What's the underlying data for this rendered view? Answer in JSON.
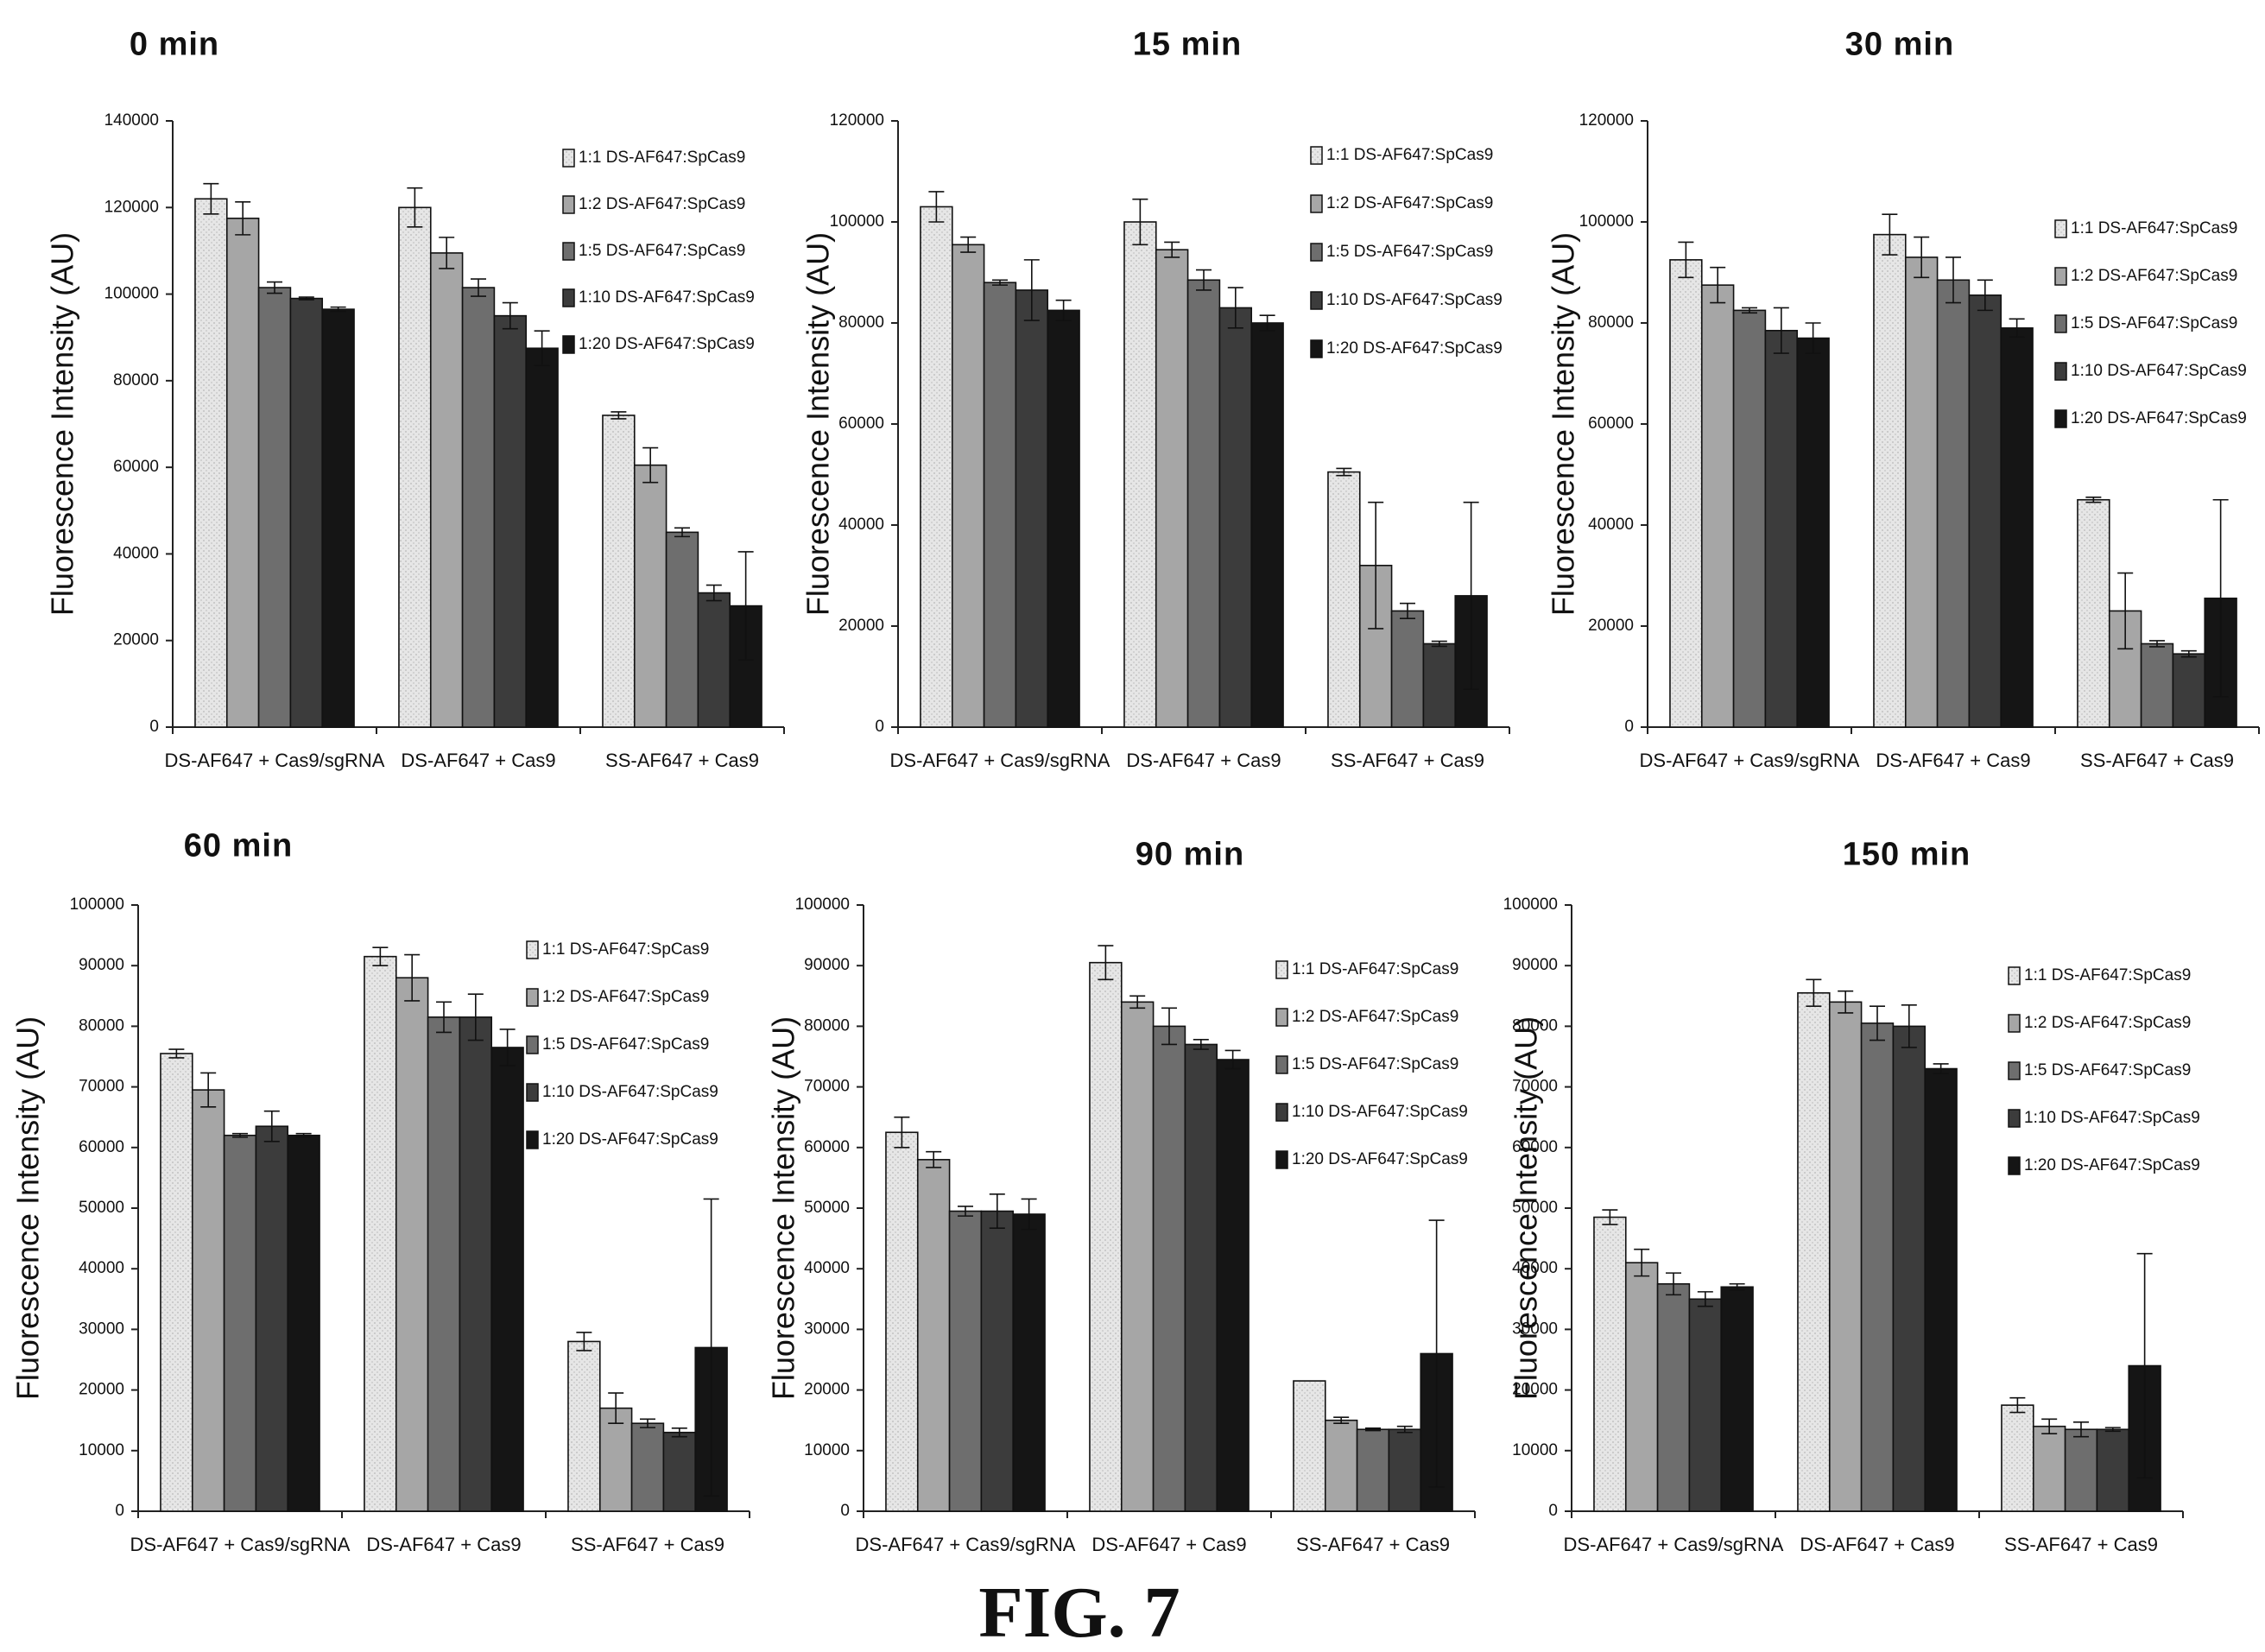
{
  "figure_label": "FIG. 7",
  "colors": {
    "series": [
      "#e2e2e2",
      "#a6a6a6",
      "#6e6e6e",
      "#3c3c3c",
      "#151515"
    ],
    "axis": "#222222",
    "text": "#111111"
  },
  "chart_data": [
    {
      "type": "bar",
      "title": "0 min",
      "ylabel": "Fluorescence Intensity (AU)",
      "ylim": [
        0,
        140000
      ],
      "yticks": [
        0,
        20000,
        40000,
        60000,
        80000,
        100000,
        120000,
        140000
      ],
      "categories": [
        "DS-AF647 + Cas9/sgRNA",
        "DS-AF647 + Cas9",
        "SS-AF647 + Cas9"
      ],
      "series": [
        {
          "name": "1:1 DS-AF647:SpCas9",
          "values": [
            122000,
            120000,
            72000
          ],
          "errors": [
            3500,
            4500,
            800
          ]
        },
        {
          "name": "1:2 DS-AF647:SpCas9",
          "values": [
            117500,
            109500,
            60500
          ],
          "errors": [
            3800,
            3600,
            4000
          ]
        },
        {
          "name": "1:5 DS-AF647:SpCas9",
          "values": [
            101500,
            101500,
            45000
          ],
          "errors": [
            1300,
            2000,
            1000
          ]
        },
        {
          "name": "1:10 DS-AF647:SpCas9",
          "values": [
            99000,
            95000,
            31000
          ],
          "errors": [
            300,
            3000,
            1800
          ]
        },
        {
          "name": "1:20 DS-AF647:SpCas9",
          "values": [
            96500,
            87500,
            28000
          ],
          "errors": [
            500,
            4000,
            12500
          ]
        }
      ]
    },
    {
      "type": "bar",
      "title": "15 min",
      "ylabel": "Fluorescence Intensity (AU)",
      "ylim": [
        0,
        120000
      ],
      "yticks": [
        0,
        20000,
        40000,
        60000,
        80000,
        100000,
        120000
      ],
      "categories": [
        "DS-AF647 + Cas9/sgRNA",
        "DS-AF647 + Cas9",
        "SS-AF647 + Cas9"
      ],
      "series": [
        {
          "name": "1:1 DS-AF647:SpCas9",
          "values": [
            103000,
            100000,
            50500
          ],
          "errors": [
            3000,
            4500,
            700
          ]
        },
        {
          "name": "1:2 DS-AF647:SpCas9",
          "values": [
            95500,
            94500,
            32000
          ],
          "errors": [
            1500,
            1500,
            12500
          ]
        },
        {
          "name": "1:5 DS-AF647:SpCas9",
          "values": [
            88000,
            88500,
            23000
          ],
          "errors": [
            500,
            2000,
            1500
          ]
        },
        {
          "name": "1:10 DS-AF647:SpCas9",
          "values": [
            86500,
            83000,
            16500
          ],
          "errors": [
            6000,
            4000,
            500
          ]
        },
        {
          "name": "1:20 DS-AF647:SpCas9",
          "values": [
            82500,
            80000,
            26000
          ],
          "errors": [
            2000,
            1500,
            18500
          ]
        }
      ]
    },
    {
      "type": "bar",
      "title": "30 min",
      "ylabel": "Fluorescence Intensity (AU)",
      "ylim": [
        0,
        120000
      ],
      "yticks": [
        0,
        20000,
        40000,
        60000,
        80000,
        100000,
        120000
      ],
      "categories": [
        "DS-AF647 + Cas9/sgRNA",
        "DS-AF647 + Cas9",
        "SS-AF647 + Cas9"
      ],
      "series": [
        {
          "name": "1:1 DS-AF647:SpCas9",
          "values": [
            92500,
            97500,
            45000
          ],
          "errors": [
            3500,
            4000,
            500
          ]
        },
        {
          "name": "1:2 DS-AF647:SpCas9",
          "values": [
            87500,
            93000,
            23000
          ],
          "errors": [
            3500,
            4000,
            7500
          ]
        },
        {
          "name": "1:5 DS-AF647:SpCas9",
          "values": [
            82500,
            88500,
            16500
          ],
          "errors": [
            500,
            4500,
            600
          ]
        },
        {
          "name": "1:10 DS-AF647:SpCas9",
          "values": [
            78500,
            85500,
            14500
          ],
          "errors": [
            4500,
            3000,
            600
          ]
        },
        {
          "name": "1:20 DS-AF647:SpCas9",
          "values": [
            77000,
            79000,
            25500
          ],
          "errors": [
            3000,
            1800,
            19500
          ]
        }
      ]
    },
    {
      "type": "bar",
      "title": "60 min",
      "ylabel": "Fluorescence Intensity (AU)",
      "ylim": [
        0,
        100000
      ],
      "yticks": [
        0,
        10000,
        20000,
        30000,
        40000,
        50000,
        60000,
        70000,
        80000,
        90000,
        100000
      ],
      "categories": [
        "DS-AF647 + Cas9/sgRNA",
        "DS-AF647 + Cas9",
        "SS-AF647 + Cas9"
      ],
      "series": [
        {
          "name": "1:1 DS-AF647:SpCas9",
          "values": [
            75500,
            91500,
            28000
          ],
          "errors": [
            700,
            1500,
            1500
          ]
        },
        {
          "name": "1:2 DS-AF647:SpCas9",
          "values": [
            69500,
            88000,
            17000
          ],
          "errors": [
            2800,
            3800,
            2500
          ]
        },
        {
          "name": "1:5 DS-AF647:SpCas9",
          "values": [
            62000,
            81500,
            14500
          ],
          "errors": [
            300,
            2500,
            700
          ]
        },
        {
          "name": "1:10 DS-AF647:SpCas9",
          "values": [
            63500,
            81500,
            13000
          ],
          "errors": [
            2500,
            3800,
            700
          ]
        },
        {
          "name": "1:20 DS-AF647:SpCas9",
          "values": [
            62000,
            76500,
            27000
          ],
          "errors": [
            300,
            3000,
            24500
          ]
        }
      ]
    },
    {
      "type": "bar",
      "title": "90 min",
      "ylabel": "Fluorescence Intensity (AU)",
      "ylim": [
        0,
        100000
      ],
      "yticks": [
        0,
        10000,
        20000,
        30000,
        40000,
        50000,
        60000,
        70000,
        80000,
        90000,
        100000
      ],
      "categories": [
        "DS-AF647 + Cas9/sgRNA",
        "DS-AF647 + Cas9",
        "SS-AF647 + Cas9"
      ],
      "series": [
        {
          "name": "1:1 DS-AF647:SpCas9",
          "values": [
            62500,
            90500,
            21500
          ],
          "errors": [
            2500,
            2800,
            0
          ]
        },
        {
          "name": "1:2 DS-AF647:SpCas9",
          "values": [
            58000,
            84000,
            15000
          ],
          "errors": [
            1300,
            1000,
            500
          ]
        },
        {
          "name": "1:5 DS-AF647:SpCas9",
          "values": [
            49500,
            80000,
            13500
          ],
          "errors": [
            800,
            3000,
            200
          ]
        },
        {
          "name": "1:10 DS-AF647:SpCas9",
          "values": [
            49500,
            77000,
            13500
          ],
          "errors": [
            2800,
            800,
            500
          ]
        },
        {
          "name": "1:20 DS-AF647:SpCas9",
          "values": [
            49000,
            74500,
            26000
          ],
          "errors": [
            2500,
            1500,
            22000
          ]
        }
      ]
    },
    {
      "type": "bar",
      "title": "150 min",
      "ylabel": "Fluorescence Intensity (AU)",
      "ylim": [
        0,
        100000
      ],
      "yticks": [
        0,
        10000,
        20000,
        30000,
        40000,
        50000,
        60000,
        70000,
        80000,
        90000,
        100000
      ],
      "categories": [
        "DS-AF647 + Cas9/sgRNA",
        "DS-AF647 + Cas9",
        "SS-AF647 + Cas9"
      ],
      "series": [
        {
          "name": "1:1 DS-AF647:SpCas9",
          "values": [
            48500,
            85500,
            17500
          ],
          "errors": [
            1200,
            2200,
            1200
          ]
        },
        {
          "name": "1:2 DS-AF647:SpCas9",
          "values": [
            41000,
            84000,
            14000
          ],
          "errors": [
            2200,
            1800,
            1200
          ]
        },
        {
          "name": "1:5 DS-AF647:SpCas9",
          "values": [
            37500,
            80500,
            13500
          ],
          "errors": [
            1800,
            2800,
            1200
          ]
        },
        {
          "name": "1:10 DS-AF647:SpCas9",
          "values": [
            35000,
            80000,
            13500
          ],
          "errors": [
            1200,
            3500,
            300
          ]
        },
        {
          "name": "1:20 DS-AF647:SpCas9",
          "values": [
            37000,
            73000,
            24000
          ],
          "errors": [
            500,
            800,
            18500
          ]
        }
      ]
    }
  ]
}
